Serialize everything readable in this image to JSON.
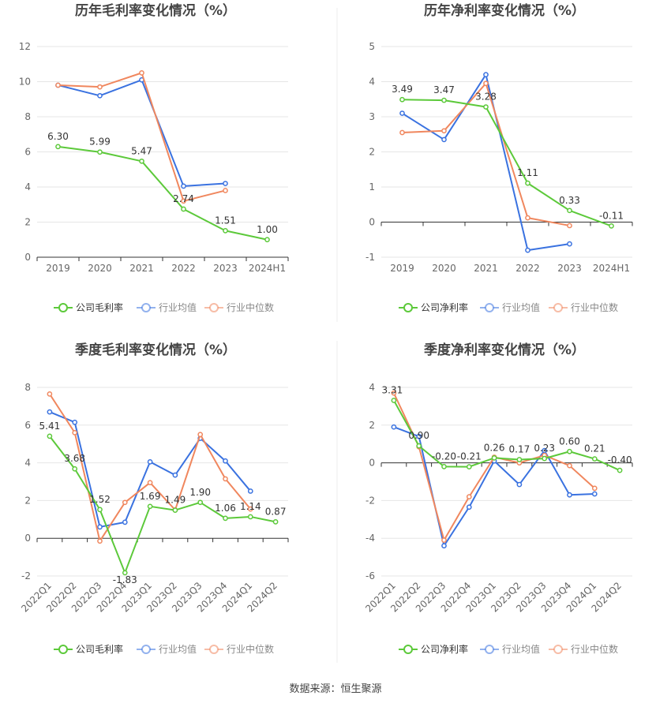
{
  "colors": {
    "company": "#5cc93a",
    "avg": "#3a72e0",
    "median": "#f0875e",
    "grid": "#e6e6e6",
    "axis": "#333333",
    "tick_text": "#666666",
    "label_text": "#333333",
    "title_text": "#444444",
    "divider": "#eeeeee"
  },
  "source": "数据来源：恒生聚源",
  "chart_data": [
    {
      "type": "line",
      "title": "历年毛利率变化情况（%）",
      "categories": [
        "2019",
        "2020",
        "2021",
        "2022",
        "2023",
        "2024H1"
      ],
      "ylim": [
        0,
        12
      ],
      "yticks": [
        0,
        2,
        4,
        6,
        8,
        10,
        12
      ],
      "grid": true,
      "legend_position": "bottom",
      "series": [
        {
          "name": "公司毛利率",
          "color": "#5cc93a",
          "labeled": true,
          "values": [
            6.3,
            5.99,
            5.47,
            2.74,
            1.51,
            1.0
          ],
          "labels": [
            "6.30",
            "5.99",
            "5.47",
            "2.74",
            "1.51",
            "1.00"
          ]
        },
        {
          "name": "行业均值",
          "color": "#3a72e0",
          "labeled": false,
          "values": [
            9.8,
            9.2,
            10.1,
            4.05,
            4.2,
            null
          ]
        },
        {
          "name": "行业中位数",
          "color": "#f0875e",
          "labeled": false,
          "values": [
            9.8,
            9.7,
            10.5,
            3.2,
            3.8,
            null
          ]
        }
      ]
    },
    {
      "type": "line",
      "title": "历年净利率变化情况（%）",
      "categories": [
        "2019",
        "2020",
        "2021",
        "2022",
        "2023",
        "2024H1"
      ],
      "ylim": [
        -1,
        5
      ],
      "yticks": [
        -1,
        0,
        1,
        2,
        3,
        4,
        5
      ],
      "grid": true,
      "legend_position": "bottom",
      "series": [
        {
          "name": "公司净利率",
          "color": "#5cc93a",
          "labeled": true,
          "values": [
            3.49,
            3.47,
            3.28,
            1.11,
            0.33,
            -0.11
          ],
          "labels": [
            "3.49",
            "3.47",
            "3.28",
            "1.11",
            "0.33",
            "-0.11"
          ]
        },
        {
          "name": "行业均值",
          "color": "#3a72e0",
          "labeled": false,
          "values": [
            3.1,
            2.35,
            4.2,
            -0.8,
            -0.62,
            null
          ]
        },
        {
          "name": "行业中位数",
          "color": "#f0875e",
          "labeled": false,
          "values": [
            2.55,
            2.6,
            3.95,
            0.12,
            -0.1,
            null
          ]
        }
      ]
    },
    {
      "type": "line",
      "title": "季度毛利率变化情况（%）",
      "categories": [
        "2022Q1",
        "2022Q2",
        "2022Q3",
        "2022Q4",
        "2023Q1",
        "2023Q2",
        "2023Q3",
        "2023Q4",
        "2024Q1",
        "2024Q2"
      ],
      "ylim": [
        -2,
        8
      ],
      "yticks": [
        -2,
        0,
        2,
        4,
        6,
        8
      ],
      "grid": true,
      "legend_position": "bottom",
      "series": [
        {
          "name": "公司毛利率",
          "color": "#5cc93a",
          "labeled": true,
          "values": [
            5.41,
            3.68,
            1.52,
            -1.83,
            1.69,
            1.49,
            1.9,
            1.06,
            1.14,
            0.87
          ],
          "labels": [
            "5.41",
            "3.68",
            "1.52",
            "-1.83",
            "1.69",
            "1.49",
            "1.90",
            "1.06",
            "1.14",
            "0.87"
          ]
        },
        {
          "name": "行业均值",
          "color": "#3a72e0",
          "labeled": false,
          "values": [
            6.7,
            6.15,
            0.6,
            0.85,
            4.05,
            3.35,
            5.3,
            4.1,
            2.5,
            null
          ]
        },
        {
          "name": "行业中位数",
          "color": "#f0875e",
          "labeled": false,
          "values": [
            7.65,
            5.6,
            -0.15,
            1.9,
            2.95,
            1.5,
            5.5,
            3.15,
            1.55,
            null
          ]
        }
      ]
    },
    {
      "type": "line",
      "title": "季度净利率变化情况（%）",
      "categories": [
        "2022Q1",
        "2022Q2",
        "2022Q3",
        "2022Q4",
        "2023Q1",
        "2023Q2",
        "2023Q3",
        "2023Q4",
        "2024Q1",
        "2024Q2"
      ],
      "ylim": [
        -6,
        4
      ],
      "yticks": [
        -6,
        -4,
        -2,
        0,
        2,
        4
      ],
      "grid": true,
      "legend_position": "bottom",
      "series": [
        {
          "name": "公司净利率",
          "color": "#5cc93a",
          "labeled": true,
          "values": [
            3.31,
            0.9,
            -0.2,
            -0.21,
            0.26,
            0.17,
            0.23,
            0.6,
            0.21,
            -0.4
          ],
          "labels": [
            "3.31",
            "0.90",
            "-0.20",
            "-0.21",
            "0.26",
            "0.17",
            "0.23",
            "0.60",
            "0.21",
            "-0.40"
          ]
        },
        {
          "name": "行业均值",
          "color": "#3a72e0",
          "labeled": false,
          "values": [
            1.9,
            1.4,
            -4.4,
            -2.35,
            0.1,
            -1.15,
            0.65,
            -1.7,
            -1.65,
            null
          ]
        },
        {
          "name": "行业中位数",
          "color": "#f0875e",
          "labeled": false,
          "values": [
            3.7,
            0.85,
            -4.1,
            -1.8,
            0.3,
            0.0,
            0.4,
            -0.15,
            -1.35,
            null
          ]
        }
      ]
    }
  ]
}
